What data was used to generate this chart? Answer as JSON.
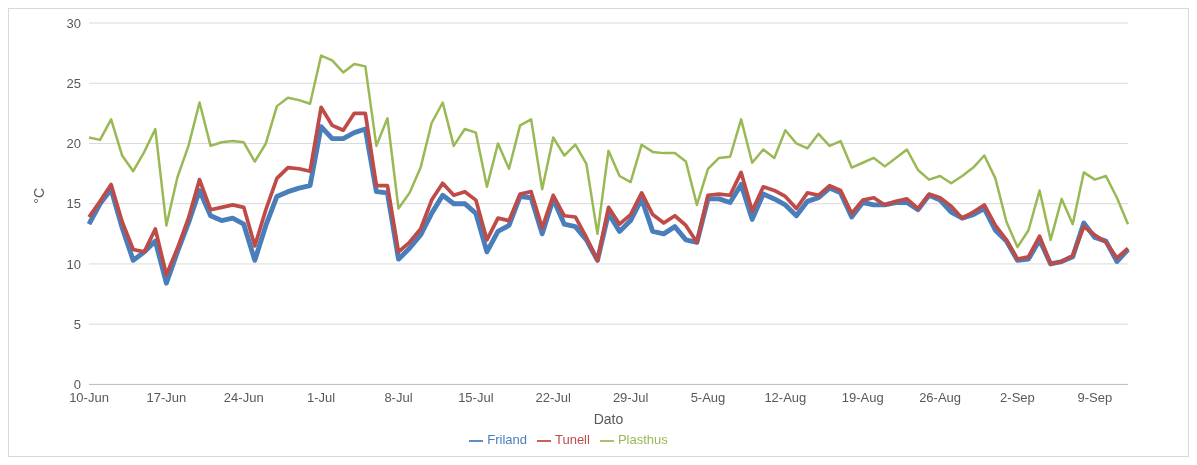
{
  "chart_data": {
    "type": "line",
    "xlabel": "Dato",
    "ylabel": "°C",
    "categories": [
      "10-Jun",
      null,
      null,
      null,
      null,
      null,
      null,
      "17-Jun",
      null,
      null,
      null,
      null,
      null,
      null,
      "24-Jun",
      null,
      null,
      null,
      null,
      null,
      null,
      "1-Jul",
      null,
      null,
      null,
      null,
      null,
      null,
      "8-Jul",
      null,
      null,
      null,
      null,
      null,
      null,
      "15-Jul",
      null,
      null,
      null,
      null,
      null,
      null,
      "22-Jul",
      null,
      null,
      null,
      null,
      null,
      null,
      "29-Jul",
      null,
      null,
      null,
      null,
      null,
      null,
      "5-Aug",
      null,
      null,
      null,
      null,
      null,
      null,
      "12-Aug",
      null,
      null,
      null,
      null,
      null,
      null,
      "19-Aug",
      null,
      null,
      null,
      null,
      null,
      null,
      "26-Aug",
      null,
      null,
      null,
      null,
      null,
      null,
      "2-Sep",
      null,
      null,
      null,
      null,
      null,
      null,
      "9-Sep",
      null,
      null,
      null
    ],
    "series": [
      {
        "name": "Friland",
        "color": "#4a7ebb",
        "values": [
          13.3,
          15.0,
          16.2,
          13.0,
          10.3,
          11.0,
          11.9,
          8.4,
          11.0,
          13.4,
          16.1,
          14.0,
          13.6,
          13.8,
          13.3,
          10.3,
          13.2,
          15.6,
          16.0,
          16.3,
          16.5,
          21.4,
          20.4,
          20.4,
          20.9,
          21.2,
          16.0,
          15.9,
          10.4,
          11.3,
          12.4,
          14.2,
          15.7,
          15.0,
          15.0,
          14.2,
          11.0,
          12.7,
          13.2,
          15.6,
          15.5,
          12.5,
          15.4,
          13.3,
          13.1,
          12.0,
          10.3,
          14.2,
          12.7,
          13.6,
          15.4,
          12.7,
          12.5,
          13.1,
          12.0,
          11.8,
          15.4,
          15.4,
          15.1,
          16.6,
          13.7,
          15.8,
          15.4,
          14.9,
          14.0,
          15.2,
          15.5,
          16.3,
          15.9,
          13.9,
          15.1,
          14.9,
          14.9,
          15.1,
          15.1,
          14.5,
          15.7,
          15.3,
          14.3,
          13.8,
          14.1,
          14.6,
          12.8,
          11.9,
          10.3,
          10.4,
          12.0,
          10.0,
          10.2,
          10.6,
          13.4,
          12.2,
          11.9,
          10.2,
          11.2
        ]
      },
      {
        "name": "Tunell",
        "color": "#be4b48",
        "values": [
          13.9,
          15.2,
          16.6,
          13.5,
          11.2,
          11.0,
          12.9,
          9.1,
          11.3,
          13.8,
          17.0,
          14.5,
          14.7,
          14.9,
          14.7,
          11.5,
          14.5,
          17.1,
          18.0,
          17.9,
          17.7,
          23.0,
          21.5,
          21.1,
          22.5,
          22.5,
          16.5,
          16.5,
          11.0,
          11.8,
          12.9,
          15.3,
          16.7,
          15.7,
          16.0,
          15.3,
          12.0,
          13.8,
          13.6,
          15.8,
          16.0,
          13.0,
          15.7,
          14.0,
          13.9,
          12.2,
          10.3,
          14.7,
          13.3,
          14.1,
          15.9,
          14.1,
          13.4,
          14.0,
          13.2,
          11.8,
          15.7,
          15.8,
          15.7,
          17.6,
          14.4,
          16.4,
          16.1,
          15.6,
          14.6,
          15.9,
          15.7,
          16.5,
          16.1,
          14.2,
          15.3,
          15.5,
          14.9,
          15.2,
          15.4,
          14.6,
          15.8,
          15.5,
          14.8,
          13.8,
          14.3,
          14.9,
          13.2,
          12.0,
          10.4,
          10.6,
          12.3,
          10.0,
          10.2,
          10.7,
          13.1,
          12.4,
          11.8,
          10.5,
          11.3
        ]
      },
      {
        "name": "Plasthus",
        "color": "#98b954",
        "values": [
          20.5,
          20.3,
          22.0,
          19.0,
          17.7,
          19.3,
          21.2,
          13.2,
          17.2,
          19.8,
          23.4,
          19.8,
          20.1,
          20.2,
          20.1,
          18.5,
          20.0,
          23.1,
          23.8,
          23.6,
          23.3,
          27.3,
          26.9,
          25.9,
          26.6,
          26.4,
          19.8,
          22.1,
          14.6,
          15.9,
          18.0,
          21.7,
          23.4,
          19.8,
          21.2,
          20.9,
          16.4,
          20.0,
          17.9,
          21.5,
          22.0,
          16.2,
          20.5,
          19.0,
          19.9,
          18.3,
          12.5,
          19.4,
          17.3,
          16.8,
          19.9,
          19.3,
          19.2,
          19.2,
          18.5,
          14.9,
          17.9,
          18.8,
          18.9,
          22.0,
          18.4,
          19.5,
          18.8,
          21.1,
          20.0,
          19.6,
          20.8,
          19.8,
          20.2,
          18.0,
          18.4,
          18.8,
          18.1,
          18.8,
          19.5,
          17.8,
          17.0,
          17.3,
          16.7,
          17.3,
          18.0,
          19.0,
          17.1,
          13.5,
          11.4,
          12.8,
          16.1,
          12.0,
          15.4,
          13.3,
          17.6,
          17.0,
          17.3,
          15.5,
          13.3
        ]
      }
    ],
    "ylim": [
      0,
      30
    ],
    "yticks": [
      0,
      5,
      10,
      15,
      20,
      25,
      30
    ],
    "grid": "y",
    "legend": "bottom",
    "marker": "none",
    "line_style": "solid"
  }
}
